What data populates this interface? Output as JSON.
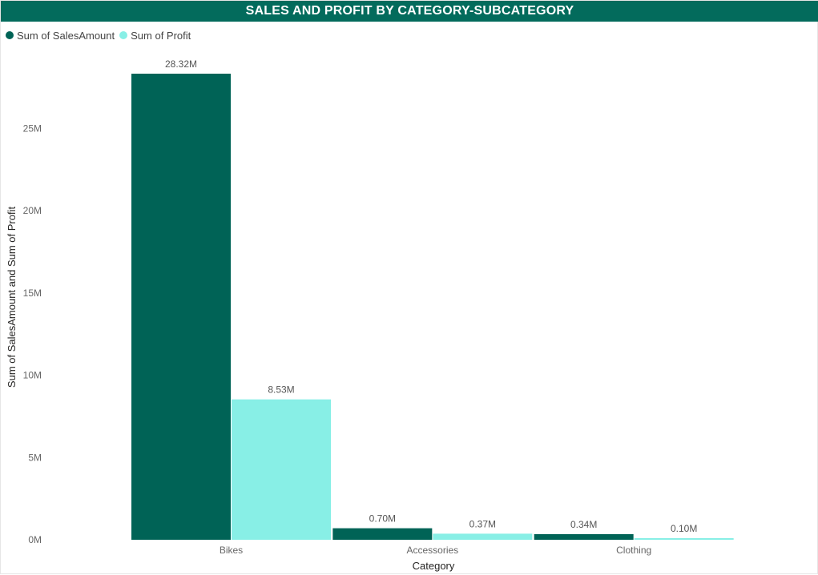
{
  "title": "SALES AND PROFIT BY CATEGORY-SUBCATEGORY",
  "colors": {
    "title_bg": "#036b5c",
    "title_text": "#ffffff",
    "sales": "#006356",
    "profit": "#88efe6"
  },
  "chart_data": {
    "type": "bar",
    "title": "SALES AND PROFIT BY CATEGORY-SUBCATEGORY",
    "xlabel": "Category",
    "ylabel": "Sum of SalesAmount and Sum of Profit",
    "categories": [
      "Bikes",
      "Accessories",
      "Clothing"
    ],
    "series": [
      {
        "name": "Sum of SalesAmount",
        "values": [
          28.32,
          0.7,
          0.34
        ],
        "labels": [
          "28.32M",
          "0.70M",
          "0.34M"
        ],
        "color": "#006356"
      },
      {
        "name": "Sum of Profit",
        "values": [
          8.53,
          0.37,
          0.1
        ],
        "labels": [
          "8.53M",
          "0.37M",
          "0.10M"
        ],
        "color": "#88efe6"
      }
    ],
    "ylim": [
      0,
      30
    ],
    "yticks": [
      0,
      5,
      10,
      15,
      20,
      25
    ],
    "ytick_labels": [
      "0M",
      "5M",
      "10M",
      "15M",
      "20M",
      "25M"
    ],
    "legend_position": "top-left",
    "grid": false
  }
}
